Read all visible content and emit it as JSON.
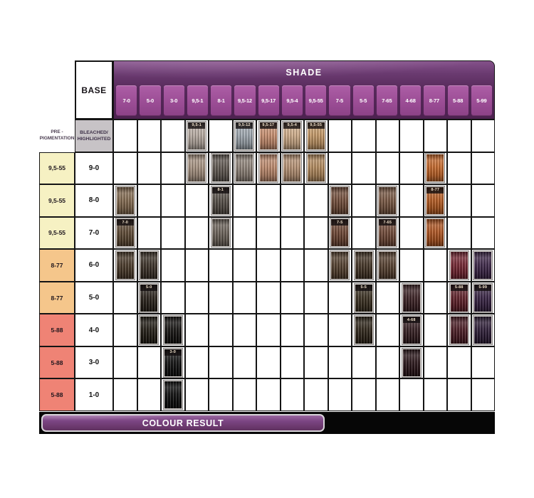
{
  "header": {
    "shade_title": "SHADE",
    "base_label": "BASE",
    "pre_pigmentation_lines": [
      "PRE -",
      "PIGMENTATION"
    ],
    "bleached_lines": [
      "BLEACHED/",
      "HIGHLIGHTED"
    ]
  },
  "chart_data": {
    "type": "table",
    "title": "SHADE",
    "columns": [
      "7-0",
      "5-0",
      "3-0",
      "9,5-1",
      "8-1",
      "9,5-12",
      "9,5-17",
      "9,5-4",
      "9,5-55",
      "7-5",
      "5-5",
      "7-65",
      "4-68",
      "8-77",
      "5-88",
      "5-99"
    ],
    "row_header": "BASE",
    "rows": [
      {
        "pre_pigmentation": null,
        "base": "BLEACHED/HIGHLIGHTED",
        "swatches": [
          {
            "col": "9,5-1",
            "label": "9,5-1",
            "color": "#b2a69d"
          },
          {
            "col": "9,5-12",
            "label": "9,5-12",
            "color": "#9aa3ab"
          },
          {
            "col": "9,5-17",
            "label": "9,5-17",
            "color": "#c38a6b"
          },
          {
            "col": "9,5-4",
            "label": "9,5-4",
            "color": "#c9a784"
          },
          {
            "col": "9,5-55",
            "label": "9,5-55",
            "color": "#bf9463"
          }
        ]
      },
      {
        "pre_pigmentation": "9,5-55",
        "pre_color": "#f6f1c3",
        "base": "9-0",
        "swatches": [
          {
            "col": "9,5-1",
            "color": "#a28e7d"
          },
          {
            "col": "8-1",
            "color": "#5d554e"
          },
          {
            "col": "9,5-12",
            "color": "#8b7f75"
          },
          {
            "col": "9,5-17",
            "color": "#b98669"
          },
          {
            "col": "9,5-4",
            "color": "#b18d70"
          },
          {
            "col": "9,5-55",
            "color": "#ae865a"
          },
          {
            "col": "8-77",
            "color": "#c06428"
          }
        ]
      },
      {
        "pre_pigmentation": "9,5-55",
        "pre_color": "#f6f1c3",
        "base": "8-0",
        "swatches": [
          {
            "col": "7-0",
            "color": "#7f664c"
          },
          {
            "col": "8-1",
            "label": "8-1",
            "color": "#534c45"
          },
          {
            "col": "7-5",
            "color": "#6f4a37"
          },
          {
            "col": "7-65",
            "color": "#755440"
          },
          {
            "col": "8-77",
            "label": "8-77",
            "color": "#b1581f"
          }
        ]
      },
      {
        "pre_pigmentation": "9,5-55",
        "pre_color": "#f6f1c3",
        "base": "7-0",
        "swatches": [
          {
            "col": "7-0",
            "label": "7-0",
            "color": "#5b4732"
          },
          {
            "col": "8-1",
            "color": "#696057"
          },
          {
            "col": "7-5",
            "label": "7-5",
            "color": "#6a4331"
          },
          {
            "col": "7-65",
            "label": "7-65",
            "color": "#6d4635"
          },
          {
            "col": "8-77",
            "color": "#aa511e"
          }
        ]
      },
      {
        "pre_pigmentation": "8-77",
        "pre_color": "#f5c68b",
        "base": "6-0",
        "swatches": [
          {
            "col": "7-0",
            "color": "#483828"
          },
          {
            "col": "5-0",
            "color": "#3a3026"
          },
          {
            "col": "7-5",
            "color": "#523e2d"
          },
          {
            "col": "5-5",
            "color": "#423324"
          },
          {
            "col": "7-65",
            "color": "#543e2e"
          },
          {
            "col": "5-88",
            "color": "#722430"
          },
          {
            "col": "5-99",
            "color": "#3b2546"
          }
        ]
      },
      {
        "pre_pigmentation": "8-77",
        "pre_color": "#f5c68b",
        "base": "5-0",
        "swatches": [
          {
            "col": "5-0",
            "label": "5-0",
            "color": "#28211a"
          },
          {
            "col": "5-5",
            "label": "5-5",
            "color": "#382e1f"
          },
          {
            "col": "4-68",
            "color": "#3a2023"
          },
          {
            "col": "5-88",
            "label": "5-88",
            "color": "#5d1f27"
          },
          {
            "col": "5-99",
            "label": "5-99",
            "color": "#342040"
          }
        ]
      },
      {
        "pre_pigmentation": "5-88",
        "pre_color": "#ef8375",
        "base": "4-0",
        "swatches": [
          {
            "col": "5-0",
            "color": "#201b13"
          },
          {
            "col": "3-0",
            "color": "#141210"
          },
          {
            "col": "5-5",
            "color": "#2d2418"
          },
          {
            "col": "4-68",
            "label": "4-68",
            "color": "#321c1f"
          },
          {
            "col": "5-88",
            "color": "#491b23"
          },
          {
            "col": "5-99",
            "color": "#2b1b35"
          }
        ]
      },
      {
        "pre_pigmentation": "5-88",
        "pre_color": "#ef8375",
        "base": "3-0",
        "swatches": [
          {
            "col": "3-0",
            "label": "3-0",
            "color": "#0f0f0f"
          },
          {
            "col": "4-68",
            "color": "#291519"
          }
        ]
      },
      {
        "pre_pigmentation": "5-88",
        "pre_color": "#ef8375",
        "base": "1-0",
        "swatches": [
          {
            "col": "3-0",
            "color": "#0c0c0c"
          }
        ]
      }
    ]
  },
  "footer": {
    "colour_result_label": "COLOUR RESULT"
  },
  "colors": {
    "header_panel_purple": "#4d2150",
    "header_chip_purple": "#9a4c94",
    "bleached_cell_grey": "#c7c3c6",
    "banner_purple": "#7b4583",
    "footer_strip_black": "#060606",
    "grid_line": "#141414",
    "prepig_yellow": "#f6f1c3",
    "prepig_peach": "#f5c68b",
    "prepig_salmon": "#ef8375"
  }
}
